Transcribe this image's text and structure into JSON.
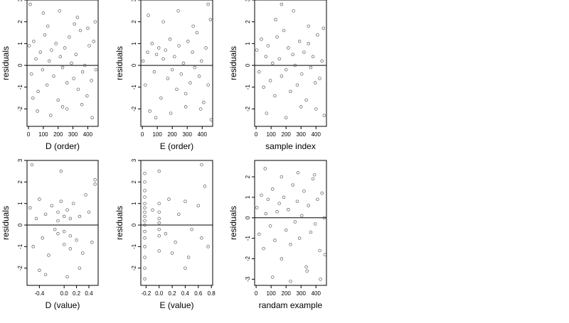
{
  "chart_data": [
    {
      "type": "scatter",
      "xlabel": "D (order)",
      "ylabel": "residuals",
      "xlim": [
        -10,
        470
      ],
      "ylim": [
        -2.8,
        3.0
      ],
      "xticks": [
        0,
        100,
        200,
        300,
        400
      ],
      "yticks": [
        -2,
        -1,
        0,
        1,
        2,
        3
      ],
      "hline": 0,
      "x": [
        5,
        20,
        35,
        50,
        65,
        80,
        95,
        110,
        125,
        140,
        155,
        170,
        185,
        200,
        215,
        230,
        245,
        260,
        275,
        290,
        305,
        320,
        335,
        350,
        365,
        380,
        395,
        410,
        425,
        440,
        455,
        12,
        60,
        100,
        150,
        210,
        260,
        310,
        360,
        400,
        450,
        30,
        130,
        230,
        330,
        430
      ],
      "y": [
        0.9,
        -0.4,
        1.1,
        0.3,
        -1.2,
        0.6,
        -0.2,
        1.4,
        -0.9,
        0.2,
        0.7,
        -0.5,
        1.0,
        -1.6,
        0.4,
        -0.1,
        0.8,
        -0.8,
        1.3,
        0.1,
        -0.6,
        0.5,
        -1.1,
        1.6,
        -0.3,
        0.0,
        -1.4,
        0.9,
        -0.7,
        1.1,
        -0.2,
        2.8,
        -2.1,
        2.4,
        -2.3,
        2.5,
        -2.0,
        1.9,
        -1.8,
        1.7,
        2.0,
        -1.5,
        1.8,
        -1.9,
        2.2,
        -2.4
      ]
    },
    {
      "type": "scatter",
      "xlabel": "E (order)",
      "ylabel": "residuals",
      "xlim": [
        -10,
        470
      ],
      "ylim": [
        -2.8,
        3.0
      ],
      "xticks": [
        0,
        100,
        200,
        300,
        400
      ],
      "yticks": [
        -2,
        -1,
        0,
        1,
        2,
        3
      ],
      "hline": 0,
      "x": [
        5,
        20,
        35,
        50,
        65,
        80,
        95,
        110,
        125,
        140,
        155,
        170,
        185,
        200,
        215,
        230,
        245,
        260,
        275,
        290,
        305,
        320,
        335,
        350,
        365,
        380,
        395,
        410,
        425,
        440,
        455,
        40,
        90,
        140,
        190,
        240,
        290,
        340,
        390,
        440,
        460
      ],
      "y": [
        0.2,
        -0.9,
        0.6,
        -2.1,
        1.0,
        -0.3,
        0.5,
        0.8,
        -1.5,
        0.3,
        0.7,
        -0.6,
        1.2,
        -0.2,
        0.4,
        -1.1,
        0.9,
        -0.4,
        0.1,
        -1.3,
        1.1,
        -0.8,
        0.6,
        -0.1,
        1.5,
        -0.5,
        0.2,
        -1.7,
        0.8,
        -0.9,
        2.1,
        2.3,
        -2.4,
        2.0,
        -2.2,
        2.5,
        -1.9,
        1.8,
        -2.0,
        2.8,
        -2.5
      ]
    },
    {
      "type": "scatter",
      "xlabel": "sample index",
      "ylabel": "residuals",
      "xlim": [
        -10,
        470
      ],
      "ylim": [
        -2.8,
        3.0
      ],
      "xticks": [
        0,
        100,
        200,
        300,
        400
      ],
      "yticks": [
        -2,
        -1,
        0,
        1,
        2,
        3
      ],
      "hline": 0,
      "x": [
        5,
        20,
        35,
        50,
        65,
        80,
        95,
        110,
        125,
        140,
        155,
        170,
        185,
        200,
        215,
        230,
        245,
        260,
        275,
        290,
        305,
        320,
        335,
        350,
        365,
        380,
        395,
        410,
        425,
        440,
        455,
        70,
        130,
        170,
        200,
        250,
        300,
        350,
        400,
        450
      ],
      "y": [
        0.7,
        -0.3,
        1.2,
        -1.0,
        0.4,
        0.9,
        -0.7,
        0.1,
        -1.4,
        1.3,
        0.3,
        -0.5,
        1.6,
        -0.2,
        0.8,
        -1.2,
        0.5,
        0.0,
        -0.9,
        1.1,
        -0.4,
        0.6,
        -1.6,
        1.0,
        -0.1,
        0.4,
        -0.8,
        1.4,
        -0.6,
        0.2,
        -2.3,
        -2.2,
        2.1,
        2.8,
        -2.4,
        2.5,
        -1.9,
        1.8,
        -2.0,
        1.7
      ]
    },
    {
      "type": "scatter",
      "xlabel": "D (value)",
      "ylabel": "residuals",
      "xlim": [
        -0.6,
        0.55
      ],
      "ylim": [
        -2.8,
        3.0
      ],
      "xticks": [
        -0.4,
        0.0,
        0.2,
        0.4
      ],
      "yticks": [
        -2,
        -1,
        0,
        1,
        2,
        3
      ],
      "hline": 0,
      "x": [
        -0.55,
        -0.5,
        -0.45,
        -0.4,
        -0.35,
        -0.3,
        -0.25,
        -0.2,
        -0.15,
        -0.1,
        -0.1,
        -0.1,
        -0.05,
        0.0,
        0.0,
        0.0,
        0.05,
        0.1,
        0.1,
        0.1,
        0.15,
        0.2,
        0.25,
        0.3,
        0.35,
        0.4,
        0.45,
        0.5,
        -0.52,
        -0.3,
        -0.05,
        0.25,
        0.5,
        -0.4,
        0.05
      ],
      "y": [
        0.8,
        -1.0,
        0.3,
        1.2,
        -0.6,
        0.5,
        -1.4,
        0.9,
        -0.2,
        0.6,
        -0.4,
        0.2,
        1.1,
        -0.3,
        0.4,
        -0.9,
        0.7,
        -0.5,
        0.3,
        -1.1,
        1.0,
        -0.7,
        0.4,
        -1.3,
        1.4,
        0.6,
        -0.8,
        2.1,
        2.8,
        -2.3,
        2.5,
        -2.0,
        1.9,
        -2.1,
        -2.4
      ]
    },
    {
      "type": "scatter",
      "xlabel": "E (value)",
      "ylabel": "residuals",
      "xlim": [
        -0.28,
        0.82
      ],
      "ylim": [
        -2.8,
        3.0
      ],
      "xticks": [
        -0.2,
        0.0,
        0.2,
        0.4,
        0.6,
        0.8
      ],
      "yticks": [
        -2,
        -1,
        0,
        1,
        2,
        3
      ],
      "hline": 0,
      "x": [
        -0.22,
        -0.22,
        -0.22,
        -0.22,
        -0.22,
        -0.22,
        -0.22,
        -0.22,
        -0.22,
        -0.22,
        -0.22,
        -0.22,
        -0.22,
        -0.22,
        -0.22,
        -0.22,
        0.0,
        0.0,
        0.0,
        0.0,
        0.0,
        0.0,
        0.0,
        0.0,
        -0.1,
        0.1,
        0.15,
        0.25,
        0.3,
        0.4,
        0.45,
        0.5,
        0.6,
        0.65,
        0.7,
        0.75,
        0.2,
        0.4,
        0.65
      ],
      "y": [
        -2.5,
        -2.0,
        -1.5,
        -1.0,
        -0.6,
        -0.3,
        0.0,
        0.2,
        0.4,
        0.6,
        0.8,
        1.0,
        1.3,
        1.6,
        2.0,
        2.4,
        -1.2,
        -0.5,
        -0.2,
        0.1,
        0.3,
        0.6,
        1.0,
        2.5,
        0.7,
        -0.4,
        1.2,
        -0.8,
        0.5,
        1.1,
        -1.5,
        -0.2,
        0.9,
        -0.6,
        1.8,
        -1.0,
        -1.3,
        -2.0,
        2.8
      ]
    },
    {
      "type": "scatter",
      "xlabel": "randam example",
      "ylabel": "residuals",
      "xlim": [
        -10,
        470
      ],
      "ylim": [
        -3.3,
        2.8
      ],
      "xticks": [
        0,
        100,
        200,
        300,
        400
      ],
      "yticks": [
        -3,
        -2,
        -1,
        0,
        1,
        2
      ],
      "hline": 0,
      "x": [
        5,
        20,
        35,
        50,
        65,
        80,
        95,
        110,
        125,
        140,
        155,
        170,
        185,
        200,
        215,
        230,
        245,
        260,
        275,
        290,
        305,
        320,
        335,
        350,
        365,
        380,
        395,
        410,
        425,
        440,
        455,
        60,
        110,
        170,
        230,
        280,
        340,
        390,
        430,
        460
      ],
      "y": [
        0.5,
        -0.8,
        1.1,
        -1.5,
        0.2,
        0.9,
        -0.4,
        1.4,
        -1.1,
        0.3,
        0.7,
        -2.0,
        1.0,
        -0.6,
        0.4,
        -1.3,
        1.6,
        -0.2,
        0.8,
        -1.0,
        0.1,
        1.3,
        -2.4,
        0.6,
        -0.7,
        1.9,
        -0.3,
        0.9,
        -1.6,
        1.2,
        0.0,
        2.4,
        -2.9,
        2.0,
        -3.1,
        2.2,
        -2.6,
        2.1,
        -3.0,
        -1.8
      ]
    }
  ]
}
